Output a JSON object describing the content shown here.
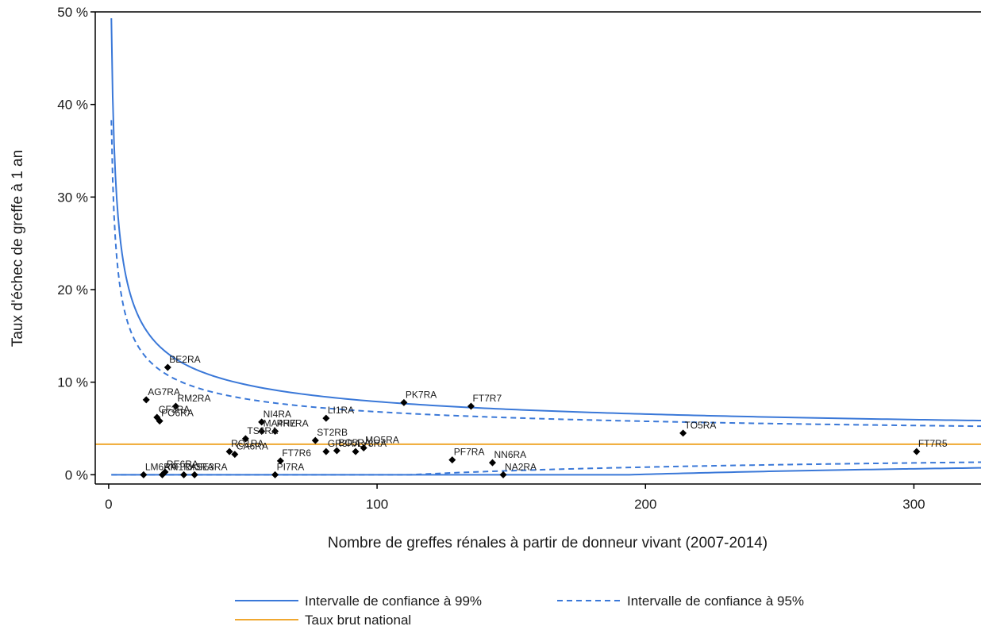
{
  "chart_data": {
    "type": "scatter",
    "title": "",
    "xlabel": "Nombre de greffes rénales à partir de donneur vivant (2007-2014)",
    "ylabel": "Taux d'échec de greffe à 1 an",
    "xlim": [
      -5,
      325
    ],
    "ylim": [
      -1,
      50
    ],
    "x_ticks": [
      0,
      100,
      200,
      300
    ],
    "y_ticks": [
      0,
      10,
      20,
      30,
      40,
      50
    ],
    "y_tick_labels": [
      "0 %",
      "10 %",
      "20 %",
      "30 %",
      "40 %",
      "50 %"
    ],
    "grid": false,
    "legend_position": "bottom",
    "national_rate": 3.3,
    "colors": {
      "ci": "#3a78d8",
      "national": "#f0a830",
      "points": "#000000",
      "axis": "#000000"
    },
    "legend": {
      "ci99": "Intervalle de confiance à 99%",
      "ci95": "Intervalle de confiance à 95%",
      "national": "Taux brut national"
    },
    "points": [
      {
        "label": "BE2RA",
        "x": 22,
        "y": 11.6
      },
      {
        "label": "AG7RA",
        "x": 14,
        "y": 8.1
      },
      {
        "label": "RM2RA",
        "x": 25,
        "y": 7.4
      },
      {
        "label": "CF3RA",
        "x": 18,
        "y": 6.2
      },
      {
        "label": "PO6RA",
        "x": 19,
        "y": 5.8
      },
      {
        "label": "NI4RA",
        "x": 57,
        "y": 5.7
      },
      {
        "label": "MA4RE",
        "x": 57,
        "y": 4.7
      },
      {
        "label": "PH7RA",
        "x": 62,
        "y": 4.7
      },
      {
        "label": "LI1RA",
        "x": 81,
        "y": 6.1
      },
      {
        "label": "TS6RA",
        "x": 51,
        "y": 3.9
      },
      {
        "label": "ST2RB",
        "x": 77,
        "y": 3.7
      },
      {
        "label": "GR3RA",
        "x": 81,
        "y": 2.5
      },
      {
        "label": "BO5RA",
        "x": 85,
        "y": 2.6
      },
      {
        "label": "MO5RA",
        "x": 95,
        "y": 2.9
      },
      {
        "label": "LY3RA",
        "x": 92,
        "y": 2.5
      },
      {
        "label": "RO1RA",
        "x": 45,
        "y": 2.5
      },
      {
        "label": "CA6RA",
        "x": 47,
        "y": 2.2
      },
      {
        "label": "PK7RA",
        "x": 110,
        "y": 7.8
      },
      {
        "label": "FT7R7",
        "x": 135,
        "y": 7.4
      },
      {
        "label": "TO5RA",
        "x": 214,
        "y": 4.5
      },
      {
        "label": "FT7R5",
        "x": 301,
        "y": 2.5
      },
      {
        "label": "PF7RA",
        "x": 128,
        "y": 1.6
      },
      {
        "label": "NN6RA",
        "x": 143,
        "y": 1.3
      },
      {
        "label": "NA2RA",
        "x": 147,
        "y": 0.0
      },
      {
        "label": "LM6RA",
        "x": 13,
        "y": 0.0
      },
      {
        "label": "AM1RA",
        "x": 20,
        "y": 0.0
      },
      {
        "label": "RE6RA",
        "x": 21,
        "y": 0.3
      },
      {
        "label": "DI3RA",
        "x": 28,
        "y": 0.0
      },
      {
        "label": "SE3RA",
        "x": 32,
        "y": 0.0
      },
      {
        "label": "PI7RA",
        "x": 62,
        "y": 0.0
      },
      {
        "label": "FT7R6",
        "x": 64,
        "y": 1.5
      }
    ]
  }
}
